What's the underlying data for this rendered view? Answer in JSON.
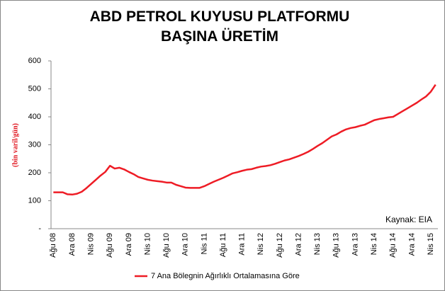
{
  "chart_data": {
    "type": "line",
    "title": "ABD PETROL KUYUSU PLATFORMU BAŞINA ÜRETİM",
    "y_label": "(bin varil/gün)",
    "annotation": "Kaynak: EIA",
    "categories": [
      "Ağu 08",
      null,
      null,
      null,
      "Ara 08",
      null,
      null,
      null,
      "Nis 09",
      null,
      null,
      null,
      "Ağu 09",
      null,
      null,
      null,
      "Ara 09",
      null,
      null,
      null,
      "Nis 10",
      null,
      null,
      null,
      "Ağu 10",
      null,
      null,
      null,
      "Ara 10",
      null,
      null,
      null,
      "Nis 11",
      null,
      null,
      null,
      "Ağu 11",
      null,
      null,
      null,
      "Ara 11",
      null,
      null,
      null,
      "Nis 12",
      null,
      null,
      null,
      "Ağu 12",
      null,
      null,
      null,
      "Ara 12",
      null,
      null,
      null,
      "Nis 13",
      null,
      null,
      null,
      "Ağu 13",
      null,
      null,
      null,
      "Ara 13",
      null,
      null,
      null,
      "Nis 14",
      null,
      null,
      null,
      "Ağu 14",
      null,
      null,
      null,
      "Ara 14",
      null,
      null,
      null,
      "Nis 15",
      null
    ],
    "series": [
      {
        "name": "7 Ana Bölegnin Ağırlıklı Ortalamasına Göre",
        "color": "#ee1c25",
        "values": [
          130,
          130,
          130,
          123,
          122,
          125,
          132,
          145,
          160,
          175,
          190,
          203,
          225,
          215,
          218,
          212,
          203,
          195,
          185,
          180,
          175,
          172,
          170,
          168,
          165,
          165,
          157,
          152,
          147,
          146,
          146,
          146,
          152,
          160,
          168,
          175,
          182,
          190,
          198,
          202,
          207,
          211,
          213,
          218,
          222,
          224,
          227,
          232,
          238,
          244,
          248,
          254,
          260,
          267,
          275,
          285,
          296,
          306,
          318,
          330,
          337,
          347,
          355,
          360,
          363,
          368,
          372,
          380,
          388,
          392,
          395,
          398,
          400,
          410,
          420,
          430,
          440,
          450,
          462,
          473,
          490,
          515
        ]
      }
    ],
    "ylim": [
      0,
      600
    ],
    "yticks": [
      {
        "value": 0,
        "label": "-"
      },
      100,
      200,
      300,
      400,
      500,
      600
    ],
    "grid": false
  }
}
